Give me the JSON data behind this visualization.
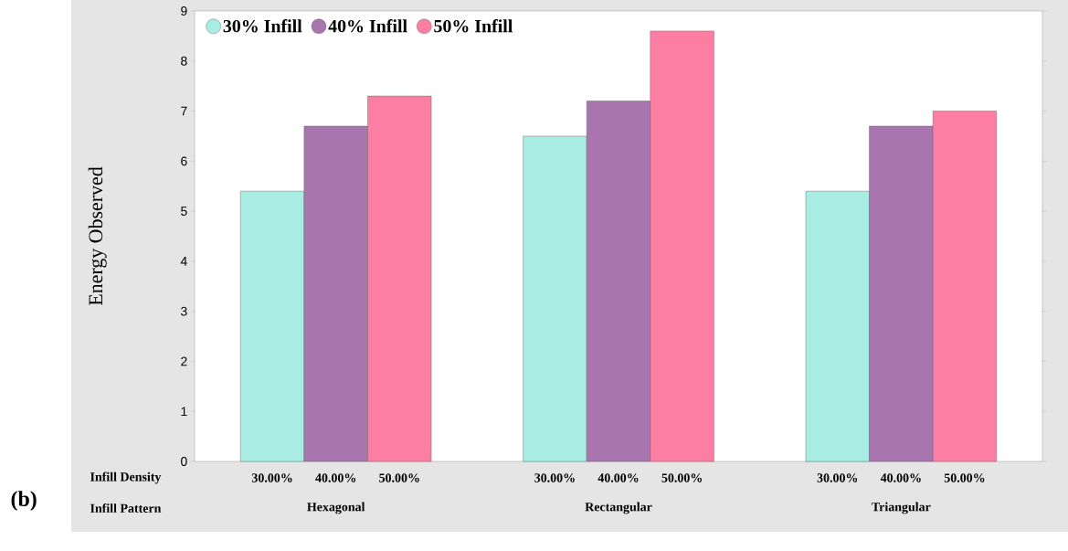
{
  "chart_data": {
    "type": "bar",
    "ylabel": "Energy Observed",
    "xlabel": "Infill Pattern",
    "categories": [
      "Hexagonal",
      "Rectangular",
      "Triangular"
    ],
    "series": [
      {
        "name": "30% Infill",
        "color": "#a8ece4",
        "values": [
          5.4,
          6.5,
          5.4
        ]
      },
      {
        "name": "40% Infill",
        "color": "#a975ae",
        "values": [
          6.7,
          7.2,
          6.7
        ]
      },
      {
        "name": "50% Infill",
        "color": "#fc7fa3",
        "values": [
          7.3,
          8.6,
          7.0
        ]
      }
    ],
    "ylim": [
      0,
      9
    ],
    "yticks": [
      0,
      1,
      2,
      3,
      4,
      5,
      6,
      7,
      8,
      9
    ],
    "legend": "top left",
    "annotations": [
      "Infill Density",
      "(b)",
      "30.00%",
      "40.00%",
      "50.00%",
      "30.00%",
      "40.00%",
      "50.00%",
      "30.00%",
      "40.00%",
      "50.00%"
    ]
  }
}
